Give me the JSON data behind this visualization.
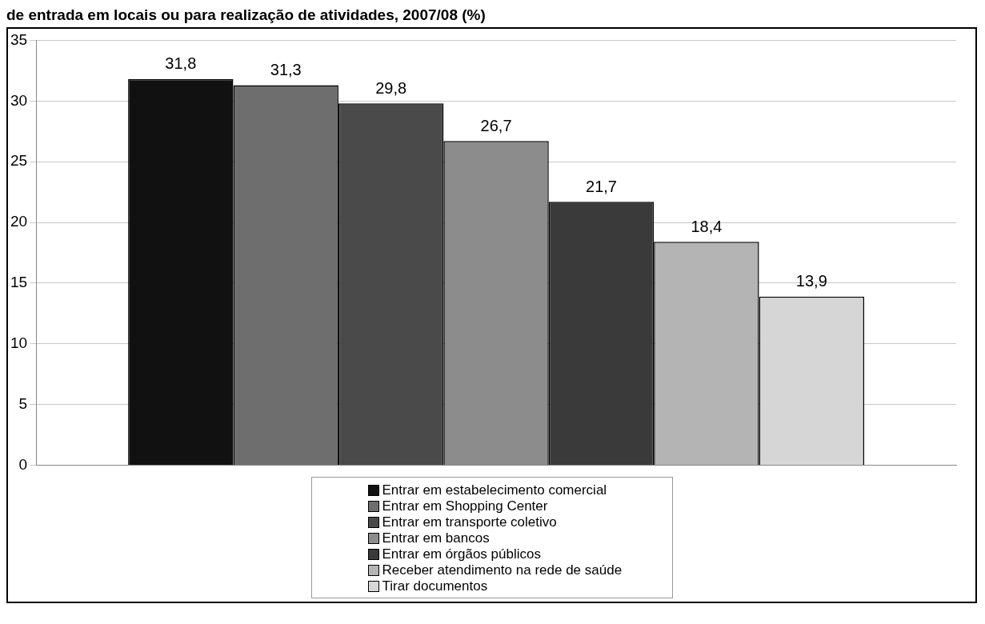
{
  "chart_data": {
    "type": "bar",
    "title": "de entrada em locais ou para realização de atividades, 2007/08 (%)",
    "categories": [
      null
    ],
    "series": [
      {
        "name": "Entrar em estabelecimento comercial",
        "color": "#111111",
        "values": [
          31.8
        ],
        "value_labels": [
          "31,8"
        ]
      },
      {
        "name": "Entrar em Shopping Center",
        "color": "#6e6e6e",
        "values": [
          31.3
        ],
        "value_labels": [
          "31,3"
        ]
      },
      {
        "name": "Entrar em transporte coletivo",
        "color": "#4a4a4a",
        "values": [
          29.8
        ],
        "value_labels": [
          "29,8"
        ]
      },
      {
        "name": "Entrar em bancos",
        "color": "#8c8c8c",
        "values": [
          26.7
        ],
        "value_labels": [
          "26,7"
        ]
      },
      {
        "name": "Entrar em órgãos públicos",
        "color": "#3a3a3a",
        "values": [
          21.7
        ],
        "value_labels": [
          "21,7"
        ]
      },
      {
        "name": "Receber atendimento na rede de saúde",
        "color": "#b4b4b4",
        "values": [
          18.4
        ],
        "value_labels": [
          "18,4"
        ]
      },
      {
        "name": "Tirar documentos",
        "color": "#d6d6d6",
        "values": [
          13.9
        ],
        "value_labels": [
          "13,9"
        ]
      }
    ],
    "ylim": [
      0,
      35
    ],
    "yticks": [
      0,
      5,
      10,
      15,
      20,
      25,
      30,
      35
    ],
    "grid": "y",
    "legend": "bottom"
  }
}
